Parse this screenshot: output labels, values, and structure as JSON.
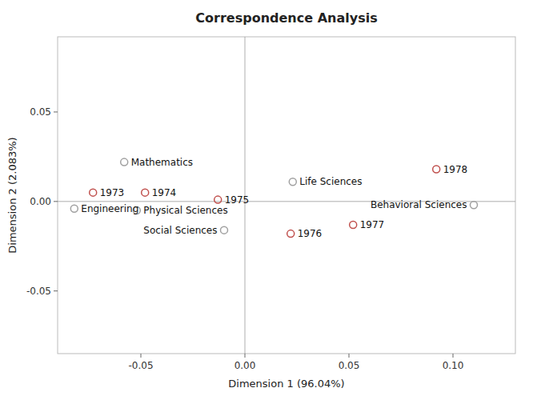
{
  "chart_data": {
    "type": "scatter",
    "title": "Correspondence Analysis",
    "x_label": "Dimension 1 (96.04%)",
    "y_label": "Dimension 2 (2.083%)",
    "xlim": [
      -0.09,
      0.13
    ],
    "ylim": [
      -0.085,
      0.092
    ],
    "xticks": [
      -0.05,
      {
        "value": 0.0,
        "label": "0.00"
      },
      0.05,
      {
        "value": 0.1,
        "label": "0.10"
      }
    ],
    "yticks": [
      -0.05,
      {
        "value": 0.0,
        "label": "0.00"
      },
      0.05
    ],
    "grid": false,
    "series": [
      {
        "color": "#c0504d",
        "marker": "circle",
        "labels": [
          "1973",
          "1974",
          "1975",
          "1976",
          "1977",
          "1978"
        ],
        "x": [
          -0.073,
          -0.048,
          -0.013,
          0.022,
          0.052,
          0.092
        ],
        "values": [
          0.005,
          0.005,
          0.001,
          -0.018,
          -0.013,
          0.018
        ]
      },
      {
        "color": "#a0a0a0",
        "marker": "circle",
        "labels": [
          "Engineering",
          "Mathematics",
          "Physical Sciences",
          "Life Sciences",
          "Social Sciences",
          "Behavioral Sciences"
        ],
        "x": [
          -0.082,
          -0.058,
          -0.052,
          0.023,
          -0.01,
          0.11
        ],
        "values": [
          -0.004,
          0.022,
          -0.005,
          0.011,
          -0.016,
          -0.002
        ]
      }
    ]
  }
}
